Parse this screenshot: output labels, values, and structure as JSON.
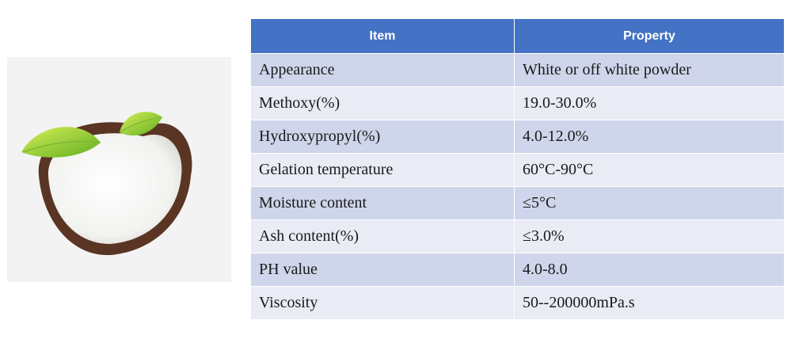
{
  "photo": {
    "subject": "white powder in a leaf-shaped bowl with green leaves"
  },
  "table": {
    "headers": {
      "item": "Item",
      "property": "Property"
    },
    "rows": [
      {
        "item": "Appearance",
        "property": "White or off white powder"
      },
      {
        "item": "Methoxy(%)",
        "property": "19.0-30.0%"
      },
      {
        "item": "Hydroxypropyl(%)",
        "property": "4.0-12.0%"
      },
      {
        "item": "Gelation temperature",
        "property": "60°C-90°C"
      },
      {
        "item": "Moisture content",
        "property": "≤5°C"
      },
      {
        "item": "Ash content(%)",
        "property": "≤3.0%"
      },
      {
        "item": "PH value",
        "property": "4.0-8.0"
      },
      {
        "item": "Viscosity",
        "property": "50--200000mPa.s"
      }
    ]
  },
  "colors": {
    "header_bg": "#4472c4",
    "row_odd": "#cfd5ea",
    "row_even": "#e9ebf5"
  }
}
